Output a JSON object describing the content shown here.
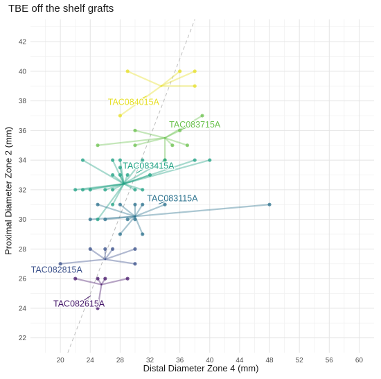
{
  "chart_data": {
    "type": "scatter",
    "title": "TBE off the shelf grafts",
    "xlabel": "Distal Diameter Zone 4 (mm)",
    "ylabel": "Proximal Diameter Zone 2 (mm)",
    "xlim": [
      16,
      62
    ],
    "ylim": [
      21,
      43.5
    ],
    "x_ticks": [
      20,
      24,
      28,
      32,
      36,
      40,
      44,
      48,
      52,
      56,
      60
    ],
    "y_ticks": [
      22,
      24,
      26,
      28,
      30,
      32,
      34,
      36,
      38,
      40,
      42
    ],
    "grid": true,
    "reference_line": {
      "style": "dashed",
      "color": "#bdbdbd",
      "points": [
        [
          21,
          21
        ],
        [
          38,
          43.5
        ]
      ]
    },
    "series": [
      {
        "name": "TAC084015A",
        "color": "#e6df26",
        "center": [
          33.5,
          39
        ],
        "label_pos": [
          29.8,
          37.9
        ],
        "points": [
          [
            29,
            40
          ],
          [
            36,
            40
          ],
          [
            38,
            40
          ],
          [
            38,
            39
          ],
          [
            28,
            37
          ]
        ]
      },
      {
        "name": "TAC083715A",
        "color": "#6cc24f",
        "center": [
          34,
          35.5
        ],
        "label_pos": [
          38,
          36.4
        ],
        "points": [
          [
            25,
            35
          ],
          [
            30,
            36
          ],
          [
            36,
            36
          ],
          [
            39,
            37
          ],
          [
            30,
            35
          ],
          [
            35,
            35
          ],
          [
            37,
            35
          ],
          [
            34,
            34
          ]
        ]
      },
      {
        "name": "TAC083415A",
        "color": "#22a385",
        "center": [
          28.5,
          32.4
        ],
        "label_pos": [
          31.8,
          33.6
        ],
        "points": [
          [
            23,
            34
          ],
          [
            27,
            34
          ],
          [
            28,
            34
          ],
          [
            28,
            33.5
          ],
          [
            31,
            34
          ],
          [
            34,
            34
          ],
          [
            38,
            34
          ],
          [
            40,
            34
          ],
          [
            27,
            33
          ],
          [
            28,
            33
          ],
          [
            29,
            33
          ],
          [
            32,
            33
          ],
          [
            22,
            32
          ],
          [
            23,
            32
          ],
          [
            24,
            32
          ],
          [
            26,
            32
          ],
          [
            27,
            32
          ],
          [
            30,
            32
          ],
          [
            31,
            32
          ],
          [
            27,
            31
          ],
          [
            25,
            30
          ]
        ]
      },
      {
        "name": "TAC083115A",
        "color": "#2c728e",
        "center": [
          30,
          30.2
        ],
        "label_pos": [
          35,
          31.4
        ],
        "points": [
          [
            25,
            31
          ],
          [
            28,
            31
          ],
          [
            30,
            31
          ],
          [
            31,
            31
          ],
          [
            34,
            31
          ],
          [
            48,
            31
          ],
          [
            24,
            30
          ],
          [
            26,
            30
          ],
          [
            29,
            30
          ],
          [
            30,
            30
          ],
          [
            28,
            29
          ],
          [
            31,
            29
          ]
        ]
      },
      {
        "name": "TAC082815A",
        "color": "#3b518b",
        "center": [
          26,
          27.3
        ],
        "label_pos": [
          19.5,
          26.6
        ],
        "points": [
          [
            20,
            27
          ],
          [
            24,
            28
          ],
          [
            26,
            28
          ],
          [
            30,
            28
          ],
          [
            27,
            28
          ],
          [
            30,
            27
          ]
        ]
      },
      {
        "name": "TAC082615A",
        "color": "#481a6c",
        "center": [
          25.5,
          25.6
        ],
        "label_pos": [
          22.5,
          24.3
        ],
        "points": [
          [
            22,
            26
          ],
          [
            25,
            26
          ],
          [
            26,
            26
          ],
          [
            29,
            26
          ],
          [
            25,
            24
          ]
        ]
      }
    ]
  }
}
